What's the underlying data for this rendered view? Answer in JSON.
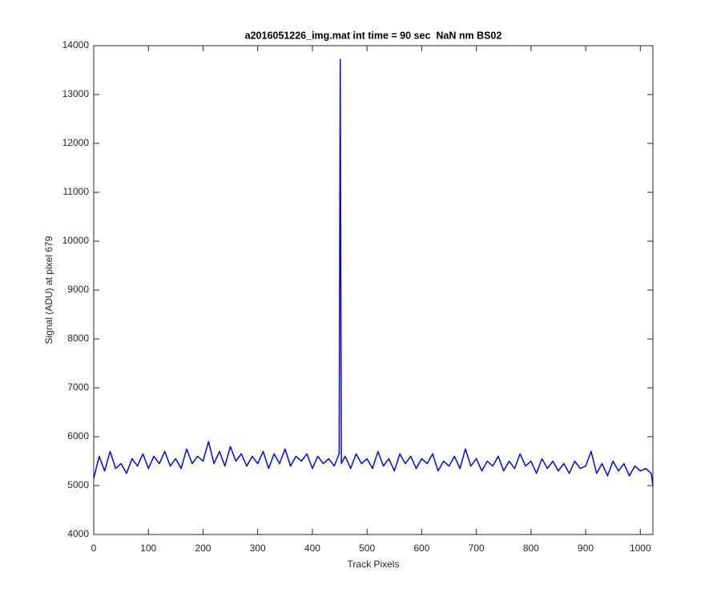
{
  "chart_data": {
    "type": "line",
    "title": "a2016051226_img.mat int time = 90 sec  NaN nm BS02",
    "x_label": "Track Pixels",
    "y_label": "Signal (ADU) at pixel 679",
    "color": "#0000ff",
    "xlim": [
      0,
      1023
    ],
    "ylim": [
      4000,
      14000
    ],
    "xticks": [
      0,
      100,
      200,
      300,
      400,
      500,
      600,
      700,
      800,
      900,
      1000
    ],
    "yticks": [
      4000,
      5000,
      6000,
      7000,
      8000,
      9000,
      10000,
      11000,
      12000,
      13000,
      14000
    ],
    "x": [
      0,
      10,
      20,
      30,
      40,
      50,
      60,
      70,
      80,
      90,
      100,
      110,
      120,
      130,
      140,
      150,
      160,
      170,
      180,
      190,
      200,
      210,
      220,
      230,
      240,
      250,
      260,
      270,
      280,
      290,
      300,
      310,
      320,
      330,
      340,
      350,
      360,
      370,
      380,
      390,
      400,
      410,
      420,
      430,
      440,
      449,
      451,
      453,
      460,
      470,
      480,
      490,
      500,
      510,
      520,
      530,
      540,
      550,
      560,
      570,
      580,
      590,
      600,
      610,
      620,
      630,
      640,
      650,
      660,
      670,
      680,
      690,
      700,
      710,
      720,
      730,
      740,
      750,
      760,
      770,
      780,
      790,
      800,
      810,
      820,
      830,
      840,
      850,
      860,
      870,
      880,
      890,
      900,
      910,
      920,
      930,
      940,
      950,
      960,
      970,
      980,
      990,
      1000,
      1010,
      1020,
      1023
    ],
    "values": [
      5150,
      5600,
      5300,
      5700,
      5350,
      5450,
      5250,
      5550,
      5400,
      5650,
      5350,
      5600,
      5450,
      5700,
      5400,
      5550,
      5350,
      5750,
      5450,
      5600,
      5500,
      5900,
      5450,
      5700,
      5400,
      5800,
      5500,
      5650,
      5400,
      5600,
      5450,
      5700,
      5350,
      5650,
      5450,
      5750,
      5400,
      5600,
      5500,
      5650,
      5350,
      5600,
      5450,
      5550,
      5400,
      5650,
      13720,
      5450,
      5600,
      5350,
      5650,
      5450,
      5550,
      5350,
      5700,
      5400,
      5550,
      5300,
      5650,
      5450,
      5600,
      5350,
      5550,
      5450,
      5650,
      5300,
      5500,
      5400,
      5600,
      5350,
      5750,
      5400,
      5550,
      5300,
      5500,
      5400,
      5600,
      5300,
      5500,
      5350,
      5650,
      5400,
      5500,
      5250,
      5550,
      5350,
      5500,
      5300,
      5450,
      5250,
      5500,
      5350,
      5400,
      5700,
      5250,
      5450,
      5200,
      5500,
      5300,
      5450,
      5200,
      5400,
      5300,
      5350,
      5250,
      5000
    ]
  }
}
